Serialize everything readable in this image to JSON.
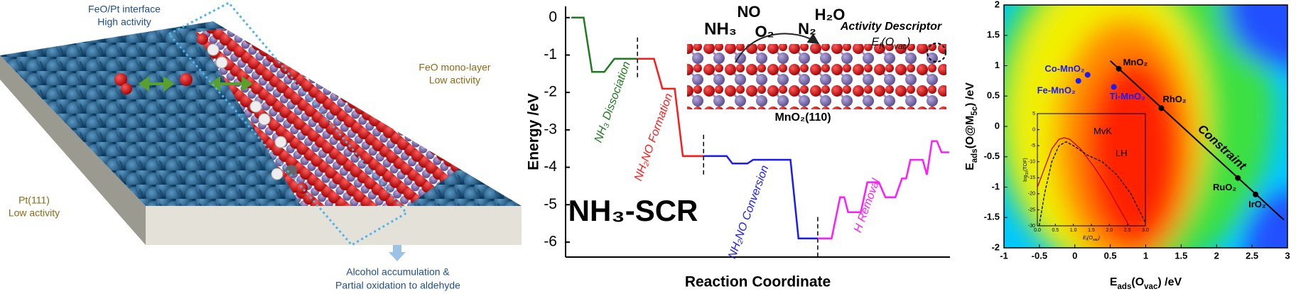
{
  "illustration": {
    "labels": {
      "interface": [
        "FeO/Pt interface",
        "High activity"
      ],
      "feo": [
        "FeO mono-layer",
        "Low activity"
      ],
      "pt": [
        "Pt(111)",
        "Low activity"
      ],
      "result": [
        "Alcohol accumulation &",
        "Partial oxidation to aldehyde"
      ]
    }
  },
  "chart_data": [
    {
      "type": "line",
      "title": "NH₃-SCR",
      "x_label": "Reaction Coordinate",
      "y_label": "Energy /eV",
      "xlim": [
        0,
        100
      ],
      "ylim": [
        -6.4,
        0.3
      ],
      "yticks": [
        0,
        -1,
        -2,
        -3,
        -4,
        -5,
        -6
      ],
      "series": [
        {
          "name": "NH₃ Dissociation",
          "color": "#1e7b1e",
          "x": [
            1.5,
            4.7,
            6.9,
            10.1,
            12.7,
            18.7
          ],
          "values": [
            0,
            0,
            -1.45,
            -1.45,
            -1.1,
            -1.1
          ]
        },
        {
          "name": "NH₂NO Formation",
          "color": "#ff1a1a",
          "x": [
            18.7,
            23.0,
            25.2,
            28.4,
            30.5,
            35.9
          ],
          "values": [
            -1.1,
            -1.1,
            -1.9,
            -1.9,
            -3.7,
            -3.7
          ]
        },
        {
          "name": "NH₂NO Conversion",
          "color": "#1a1aff",
          "x": [
            35.9,
            41.9,
            43.4,
            47.3,
            48.8,
            58.5,
            60.6,
            65.6
          ],
          "values": [
            -3.7,
            -3.7,
            -3.9,
            -3.9,
            -3.8,
            -3.8,
            -5.9,
            -5.9
          ]
        },
        {
          "name": "H Removal",
          "color": "#ff1aff",
          "x": [
            65.6,
            69.2,
            71.4,
            72.5,
            73.5,
            76.8,
            78.5,
            81.5,
            83.2,
            85.8,
            87.5,
            88.6,
            89.7,
            92.9,
            94.0,
            95.3,
            96.6,
            97.8,
            99.8
          ],
          "values": [
            -5.9,
            -5.9,
            -4.8,
            -4.8,
            -5.2,
            -5.2,
            -4.4,
            -4.4,
            -4.8,
            -4.8,
            -4.3,
            -4.3,
            -3.8,
            -3.8,
            -4.2,
            -3.3,
            -3.3,
            -3.6,
            -3.6
          ]
        }
      ],
      "annotations": [
        "NH₃",
        "NO",
        "O₂",
        "N₂",
        "H₂O",
        "Activity Descriptor",
        "MnO₂(110)"
      ],
      "descriptor": [
        {
          "text": "E"
        },
        {
          "text": "f",
          "sub": true
        },
        {
          "text": "(O"
        },
        {
          "text": "vac",
          "sub": true
        },
        {
          "text": ")"
        }
      ]
    },
    {
      "type": "scatter",
      "x_label": [
        {
          "text": "E"
        },
        {
          "text": "ads",
          "sub": true
        },
        {
          "text": "(O"
        },
        {
          "text": "vac",
          "sub": true
        },
        {
          "text": ") /eV"
        }
      ],
      "y_label": [
        {
          "text": "E"
        },
        {
          "text": "ads",
          "sub": true
        },
        {
          "text": "(O@M"
        },
        {
          "text": "5c",
          "sub": true
        },
        {
          "text": ") /eV"
        }
      ],
      "xlim": [
        -1,
        3
      ],
      "ylim": [
        -2,
        2
      ],
      "xticks": [
        -1,
        -0.5,
        0,
        0.5,
        1,
        1.5,
        2,
        2.5,
        3
      ],
      "yticks": [
        -2,
        -1.5,
        -1,
        -0.5,
        0,
        0.5,
        1,
        1.5,
        2
      ],
      "series": [
        {
          "name": "MnO₂",
          "color": "#000000",
          "x": [
            0.62
          ],
          "values": [
            0.95
          ]
        },
        {
          "name": "RhO₂",
          "color": "#000000",
          "x": [
            1.22
          ],
          "values": [
            0.3
          ]
        },
        {
          "name": "RuO₂",
          "color": "#000000",
          "x": [
            2.3
          ],
          "values": [
            -0.85
          ]
        },
        {
          "name": "IrO₂",
          "color": "#000000",
          "x": [
            2.55
          ],
          "values": [
            -1.12
          ]
        },
        {
          "name": "Co-MnO₂",
          "color": "#1a1aff",
          "x": [
            0.18
          ],
          "values": [
            0.85
          ]
        },
        {
          "name": "Fe-MnO₂",
          "color": "#1a1aff",
          "x": [
            0.05
          ],
          "values": [
            0.75
          ]
        },
        {
          "name": "Ti-MnO₂",
          "color": "#1a1aff",
          "x": [
            0.55
          ],
          "values": [
            0.65
          ]
        },
        {
          "name": "Constraint",
          "type": "line",
          "color": "#000000",
          "x": [
            0.5,
            2.95
          ],
          "values": [
            1.08,
            -1.54
          ]
        }
      ]
    },
    {
      "type": "line",
      "x_label": [
        {
          "text": "E"
        },
        {
          "text": "f",
          "sub": true
        },
        {
          "text": "(O"
        },
        {
          "text": "vac",
          "sub": true
        },
        {
          "text": ")"
        }
      ],
      "y_label": [
        {
          "text": "log"
        },
        {
          "text": "10",
          "sub": true
        },
        {
          "text": "(TOF)"
        }
      ],
      "xlim": [
        0,
        3
      ],
      "ylim": [
        -30,
        5
      ],
      "xticks": [
        {
          "value": 0,
          "label": "0.0"
        },
        {
          "value": 0.5,
          "label": "0.5"
        },
        {
          "value": 1,
          "label": "1.0"
        },
        {
          "value": 1.5,
          "label": "1.5"
        },
        {
          "value": 2,
          "label": "2.0"
        },
        {
          "value": 2.5,
          "label": "2.5"
        },
        {
          "value": 3,
          "label": "3.0"
        }
      ],
      "yticks": [
        5,
        0,
        -5,
        -10,
        -15,
        -20,
        -25,
        -30
      ],
      "series": [
        {
          "name": "MvK",
          "color": "#c00000",
          "dash": false,
          "x": [
            0,
            0.2,
            0.4,
            0.6,
            0.75,
            0.9,
            1.2,
            1.6,
            2.0,
            2.4,
            2.55
          ],
          "values": [
            -18,
            -12,
            -6,
            -3,
            -2.5,
            -3,
            -6,
            -12,
            -19,
            -27,
            -30
          ]
        },
        {
          "name": "LH",
          "color": "#000000",
          "dash": true,
          "x": [
            0.05,
            0.2,
            0.4,
            0.6,
            0.8,
            1.0,
            1.4,
            1.8,
            2.2,
            2.6,
            3.0
          ],
          "values": [
            -30,
            -20,
            -10,
            -5,
            -3.8,
            -5,
            -8,
            -10,
            -14,
            -20,
            -29
          ]
        }
      ]
    }
  ]
}
